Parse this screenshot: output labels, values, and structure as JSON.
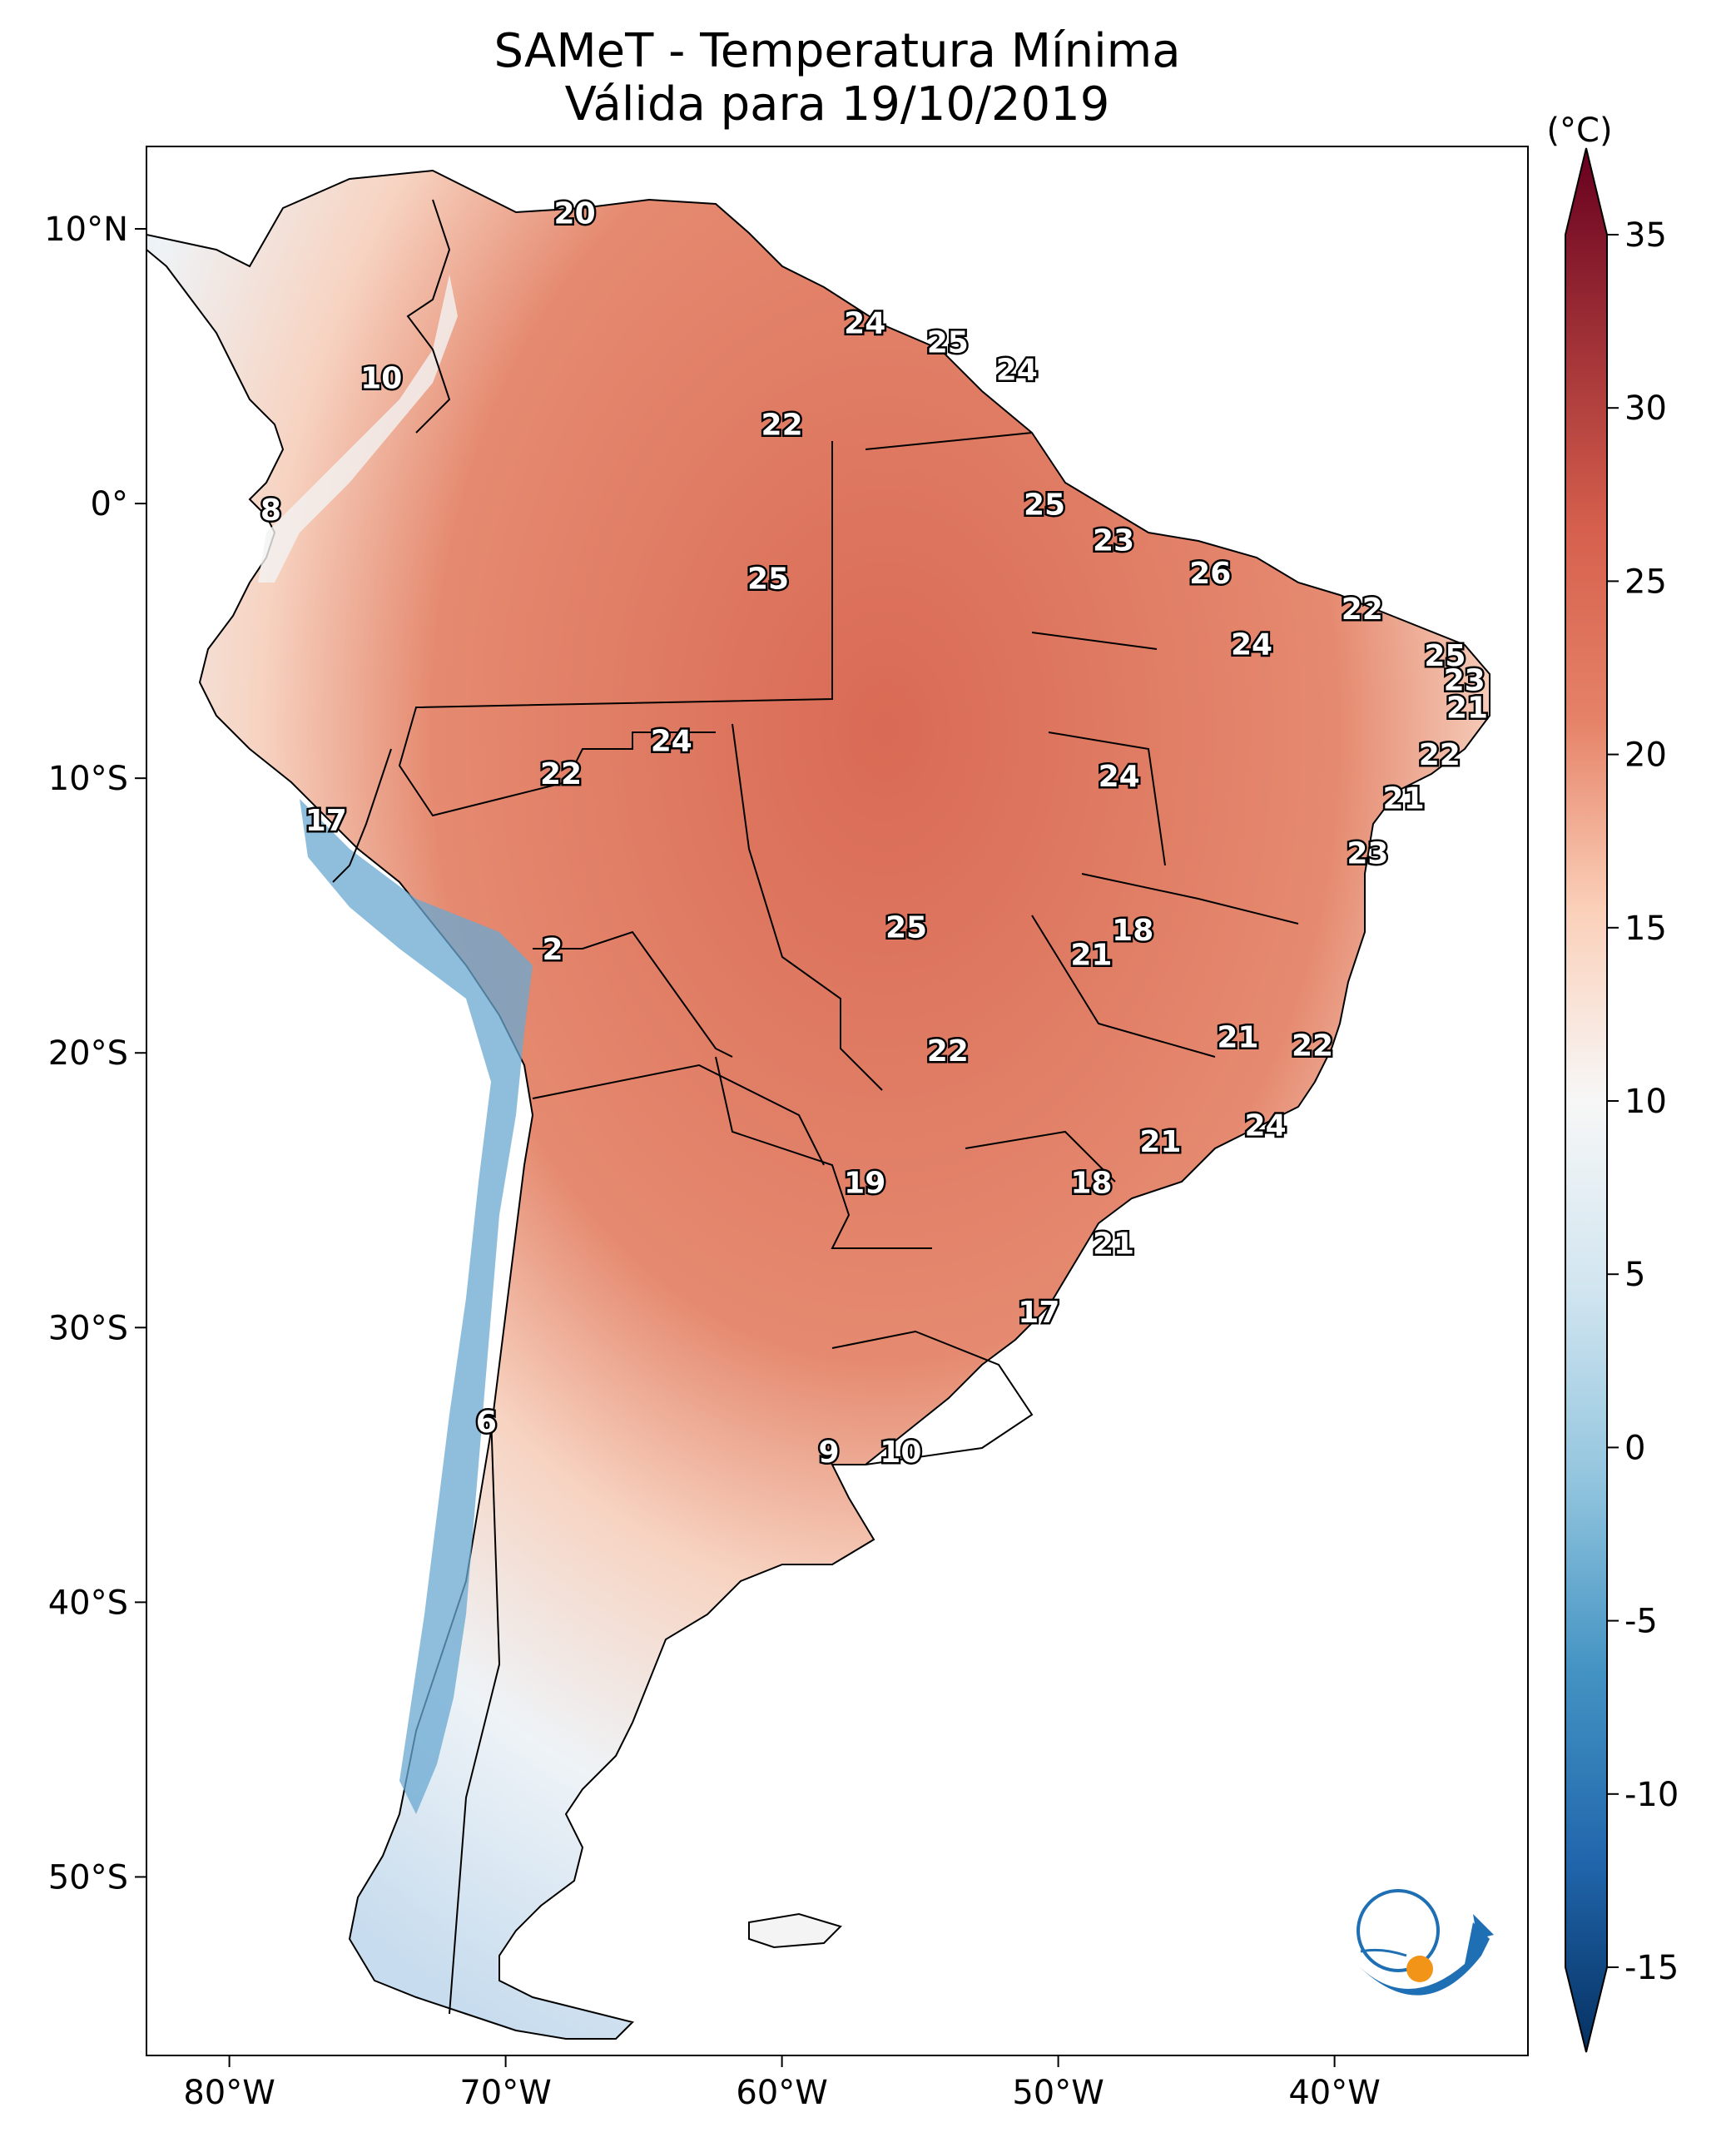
{
  "title_line1": "SAMeT - Temperatura Mínima",
  "title_line2": "Válida para 19/10/2019",
  "lat_ticks": [
    "10°N",
    "0°",
    "10°S",
    "20°S",
    "30°S",
    "40°S",
    "50°S"
  ],
  "lon_ticks": [
    "80°W",
    "70°W",
    "60°W",
    "50°W",
    "40°W"
  ],
  "colorbar": {
    "unit": "(°C)",
    "ticks": [
      "35",
      "30",
      "25",
      "20",
      "15",
      "10",
      "5",
      "0",
      "-5",
      "-10",
      "-15"
    ],
    "colors": {
      "c35": "#67001f",
      "c25": "#d6604d",
      "c20": "#e58267",
      "c15": "#fbd0b9",
      "c10": "#f7f7f7",
      "c5": "#d1e5f0",
      "c0": "#92c5de",
      "cm5": "#4393c3",
      "cm10": "#2166ac",
      "cm15": "#053061"
    }
  },
  "map_labels": [
    {
      "text": "20",
      "lon": -67.5,
      "lat": 10.5
    },
    {
      "text": "10",
      "lon": -74.5,
      "lat": 4.5
    },
    {
      "text": "8",
      "lon": -78.5,
      "lat": -0.3
    },
    {
      "text": "24",
      "lon": -57.0,
      "lat": 6.5
    },
    {
      "text": "25",
      "lon": -54.0,
      "lat": 5.8
    },
    {
      "text": "24",
      "lon": -51.5,
      "lat": 4.8
    },
    {
      "text": "22",
      "lon": -60.0,
      "lat": 2.8
    },
    {
      "text": "25",
      "lon": -50.5,
      "lat": -0.1
    },
    {
      "text": "23",
      "lon": -48.0,
      "lat": -1.4
    },
    {
      "text": "26",
      "lon": -44.5,
      "lat": -2.6
    },
    {
      "text": "22",
      "lon": -39.0,
      "lat": -3.9
    },
    {
      "text": "24",
      "lon": -43.0,
      "lat": -5.2
    },
    {
      "text": "25",
      "lon": -36.0,
      "lat": -5.6
    },
    {
      "text": "23",
      "lon": -35.3,
      "lat": -6.5
    },
    {
      "text": "21",
      "lon": -35.2,
      "lat": -7.5
    },
    {
      "text": "22",
      "lon": -36.2,
      "lat": -9.2
    },
    {
      "text": "21",
      "lon": -37.5,
      "lat": -10.8
    },
    {
      "text": "23",
      "lon": -38.8,
      "lat": -12.8
    },
    {
      "text": "25",
      "lon": -60.5,
      "lat": -2.8
    },
    {
      "text": "24",
      "lon": -64.0,
      "lat": -8.7
    },
    {
      "text": "22",
      "lon": -68.0,
      "lat": -9.9
    },
    {
      "text": "17",
      "lon": -76.5,
      "lat": -11.6
    },
    {
      "text": "24",
      "lon": -47.8,
      "lat": -10.0
    },
    {
      "text": "25",
      "lon": -55.5,
      "lat": -15.5
    },
    {
      "text": "18",
      "lon": -47.3,
      "lat": -15.6
    },
    {
      "text": "21",
      "lon": -48.8,
      "lat": -16.5
    },
    {
      "text": "2",
      "lon": -68.3,
      "lat": -16.3
    },
    {
      "text": "21",
      "lon": -43.5,
      "lat": -19.5
    },
    {
      "text": "22",
      "lon": -40.8,
      "lat": -19.8
    },
    {
      "text": "22",
      "lon": -54.0,
      "lat": -20.0
    },
    {
      "text": "24",
      "lon": -42.5,
      "lat": -22.7
    },
    {
      "text": "21",
      "lon": -46.3,
      "lat": -23.3
    },
    {
      "text": "19",
      "lon": -57.0,
      "lat": -24.8
    },
    {
      "text": "18",
      "lon": -48.8,
      "lat": -24.8
    },
    {
      "text": "21",
      "lon": -48.0,
      "lat": -27.0
    },
    {
      "text": "17",
      "lon": -50.7,
      "lat": -29.5
    },
    {
      "text": "6",
      "lon": -70.7,
      "lat": -33.5
    },
    {
      "text": "9",
      "lon": -58.3,
      "lat": -34.6
    },
    {
      "text": "10",
      "lon": -55.7,
      "lat": -34.6
    }
  ]
}
